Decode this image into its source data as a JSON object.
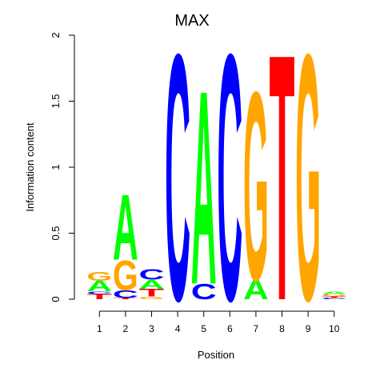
{
  "chart_data": {
    "type": "sequence-logo",
    "title": "MAX",
    "xlabel": "Position",
    "ylabel": "Information content",
    "ylim": [
      0,
      2
    ],
    "yticks": [
      "0",
      "0.5",
      "1",
      "1.5",
      "2"
    ],
    "positions": [
      "1",
      "2",
      "3",
      "4",
      "5",
      "6",
      "7",
      "8",
      "9",
      "10"
    ],
    "colors": {
      "A": "#00ff00",
      "C": "#0000ff",
      "G": "#ffa500",
      "T": "#ff0000"
    },
    "stacks": [
      [
        {
          "letter": "T",
          "height": 0.04
        },
        {
          "letter": "C",
          "height": 0.02
        },
        {
          "letter": "A",
          "height": 0.08
        },
        {
          "letter": "G",
          "height": 0.07
        }
      ],
      [
        {
          "letter": "T",
          "height": 0.01
        },
        {
          "letter": "C",
          "height": 0.06
        },
        {
          "letter": "G",
          "height": 0.23
        },
        {
          "letter": "A",
          "height": 0.51
        }
      ],
      [
        {
          "letter": "G",
          "height": 0.02
        },
        {
          "letter": "T",
          "height": 0.06
        },
        {
          "letter": "A",
          "height": 0.07
        },
        {
          "letter": "C",
          "height": 0.08
        }
      ],
      [
        {
          "letter": "C",
          "height": 1.92
        }
      ],
      [
        {
          "letter": "C",
          "height": 0.12
        },
        {
          "letter": "A",
          "height": 1.51
        }
      ],
      [
        {
          "letter": "C",
          "height": 1.92
        }
      ],
      [
        {
          "letter": "A",
          "height": 0.15
        },
        {
          "letter": "G",
          "height": 1.47
        }
      ],
      [
        {
          "letter": "T",
          "height": 1.92
        }
      ],
      [
        {
          "letter": "G",
          "height": 1.92
        }
      ],
      [
        {
          "letter": "C",
          "height": 0.01
        },
        {
          "letter": "T",
          "height": 0.01
        },
        {
          "letter": "G",
          "height": 0.02
        },
        {
          "letter": "A",
          "height": 0.02
        }
      ]
    ]
  }
}
